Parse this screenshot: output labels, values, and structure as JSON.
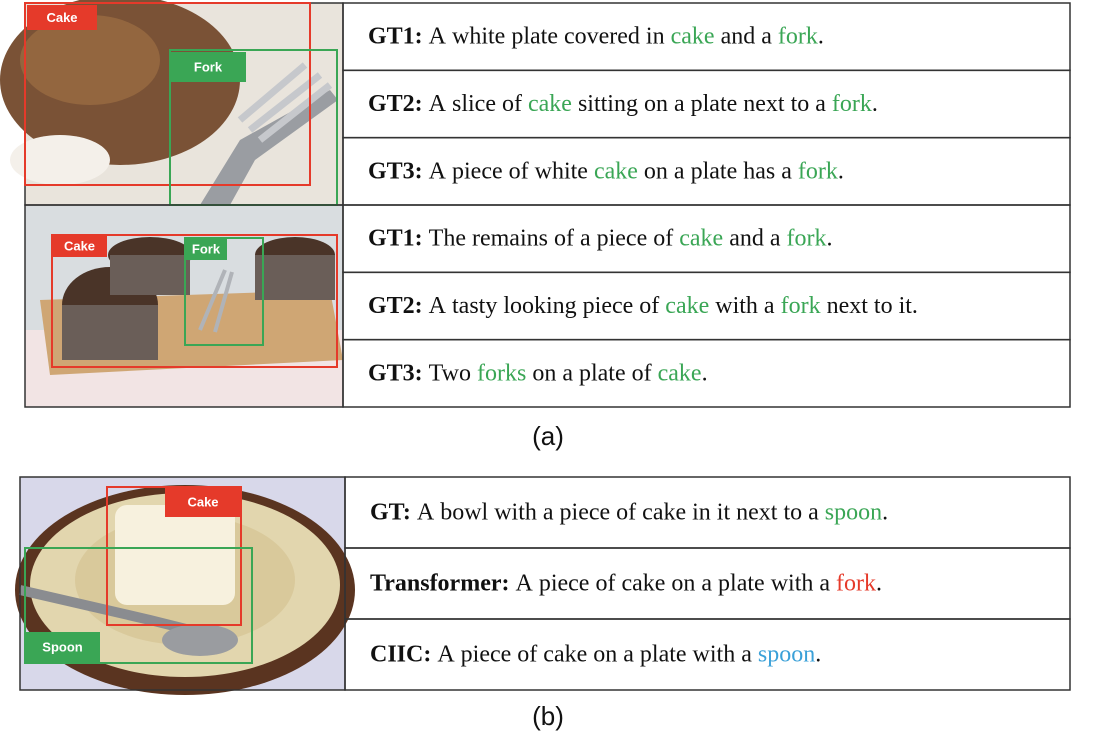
{
  "panels": [
    {
      "label": "(a)",
      "groups": [
        {
          "boxes": [
            {
              "label": "Cake",
              "color": "#e53a2a"
            },
            {
              "label": "Fork",
              "color": "#3aa655"
            }
          ],
          "captions": [
            {
              "prefix": "GT1:",
              "parts": [
                {
                  "text": "A white plate covered in "
                },
                {
                  "text": "cake",
                  "color": "#3aa655"
                },
                {
                  "text": " and a "
                },
                {
                  "text": "fork",
                  "color": "#3aa655"
                },
                {
                  "text": "."
                }
              ]
            },
            {
              "prefix": "GT2:",
              "parts": [
                {
                  "text": "A slice of "
                },
                {
                  "text": "cake",
                  "color": "#3aa655"
                },
                {
                  "text": " sitting on a plate next to a "
                },
                {
                  "text": "fork",
                  "color": "#3aa655"
                },
                {
                  "text": "."
                }
              ]
            },
            {
              "prefix": "GT3:",
              "parts": [
                {
                  "text": "A piece of white "
                },
                {
                  "text": "cake",
                  "color": "#3aa655"
                },
                {
                  "text": " on a plate has a "
                },
                {
                  "text": "fork",
                  "color": "#3aa655"
                },
                {
                  "text": "."
                }
              ]
            }
          ]
        },
        {
          "boxes": [
            {
              "label": "Cake",
              "color": "#e53a2a"
            },
            {
              "label": "Fork",
              "color": "#3aa655"
            }
          ],
          "captions": [
            {
              "prefix": "GT1:",
              "parts": [
                {
                  "text": "The remains of a piece of "
                },
                {
                  "text": "cake",
                  "color": "#3aa655"
                },
                {
                  "text": " and a "
                },
                {
                  "text": "fork",
                  "color": "#3aa655"
                },
                {
                  "text": "."
                }
              ]
            },
            {
              "prefix": "GT2:",
              "parts": [
                {
                  "text": "A tasty looking piece of "
                },
                {
                  "text": "cake",
                  "color": "#3aa655"
                },
                {
                  "text": " with a "
                },
                {
                  "text": "fork",
                  "color": "#3aa655"
                },
                {
                  "text": " next to it."
                }
              ]
            },
            {
              "prefix": "GT3:",
              "parts": [
                {
                  "text": "Two "
                },
                {
                  "text": "forks",
                  "color": "#3aa655"
                },
                {
                  "text": " on a plate of "
                },
                {
                  "text": "cake",
                  "color": "#3aa655"
                },
                {
                  "text": "."
                }
              ]
            }
          ]
        }
      ]
    },
    {
      "label": "(b)",
      "groups": [
        {
          "boxes": [
            {
              "label": "Cake",
              "color": "#e53a2a"
            },
            {
              "label": "Spoon",
              "color": "#3aa655"
            }
          ],
          "captions": [
            {
              "prefix": "GT:",
              "parts": [
                {
                  "text": "A bowl with a piece of cake in it next to a "
                },
                {
                  "text": "spoon",
                  "color": "#3aa655"
                },
                {
                  "text": "."
                }
              ]
            },
            {
              "prefix": "Transformer:",
              "parts": [
                {
                  "text": "A piece of cake on a plate with a "
                },
                {
                  "text": "fork",
                  "color": "#e53a2a"
                },
                {
                  "text": "."
                }
              ]
            },
            {
              "prefix": "CIIC:",
              "parts": [
                {
                  "text": "A piece of cake on a plate with a "
                },
                {
                  "text": "spoon",
                  "color": "#3aa0d8"
                },
                {
                  "text": "."
                }
              ]
            }
          ]
        }
      ]
    }
  ]
}
